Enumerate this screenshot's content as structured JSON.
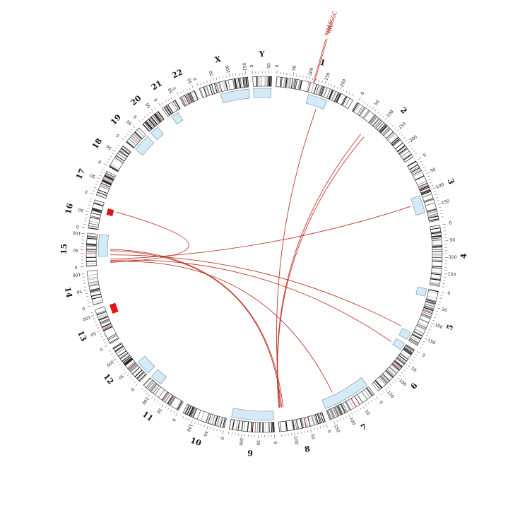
{
  "chromosomes": [
    {
      "name": "1",
      "size": 249,
      "ticks": [
        0,
        50,
        100,
        150,
        200
      ]
    },
    {
      "name": "2",
      "size": 243,
      "ticks": [
        0,
        50,
        100,
        150,
        200
      ]
    },
    {
      "name": "3",
      "size": 198,
      "ticks": [
        0,
        50,
        100,
        150
      ]
    },
    {
      "name": "4",
      "size": 191,
      "ticks": [
        0,
        50,
        100,
        150
      ]
    },
    {
      "name": "5",
      "size": 181,
      "ticks": [
        0,
        50,
        100,
        150
      ]
    },
    {
      "name": "6",
      "size": 171,
      "ticks": [
        0,
        50,
        100,
        150
      ]
    },
    {
      "name": "7",
      "size": 159,
      "ticks": [
        0,
        50,
        100,
        150
      ]
    },
    {
      "name": "8",
      "size": 146,
      "ticks": [
        0,
        50,
        100
      ]
    },
    {
      "name": "9",
      "size": 141,
      "ticks": [
        0,
        50,
        100
      ]
    },
    {
      "name": "10",
      "size": 136,
      "ticks": [
        0,
        50,
        100
      ]
    },
    {
      "name": "11",
      "size": 135,
      "ticks": [
        0,
        50,
        100
      ]
    },
    {
      "name": "12",
      "size": 134,
      "ticks": [
        0,
        50,
        100
      ]
    },
    {
      "name": "13",
      "size": 115,
      "ticks": [
        0,
        50,
        100
      ]
    },
    {
      "name": "14",
      "size": 107,
      "ticks": [
        0,
        50,
        100
      ]
    },
    {
      "name": "15",
      "size": 103,
      "ticks": [
        0,
        50,
        100
      ]
    },
    {
      "name": "16",
      "size": 90,
      "ticks": [
        0,
        50
      ]
    },
    {
      "name": "17",
      "size": 81,
      "ticks": [
        0,
        50
      ]
    },
    {
      "name": "18",
      "size": 78,
      "ticks": [
        0,
        50
      ]
    },
    {
      "name": "19",
      "size": 59,
      "ticks": [
        0,
        50
      ]
    },
    {
      "name": "20",
      "size": 63,
      "ticks": [
        0,
        50
      ]
    },
    {
      "name": "21",
      "size": 48,
      "ticks": [
        0,
        50
      ]
    },
    {
      "name": "22",
      "size": 51,
      "ticks": [
        0,
        50
      ]
    },
    {
      "name": "X",
      "size": 155,
      "ticks": [
        0,
        50,
        100,
        150
      ]
    },
    {
      "name": "Y",
      "size": 59,
      "ticks": [
        0,
        50
      ]
    }
  ],
  "cnv_segments": [
    {
      "chr": "1",
      "start": 110,
      "end": 175,
      "type": "gain"
    },
    {
      "chr": "3",
      "start": 105,
      "end": 165,
      "type": "gain"
    },
    {
      "chr": "5",
      "start": 0,
      "end": 25,
      "type": "gain"
    },
    {
      "chr": "5",
      "start": 155,
      "end": 181,
      "type": "gain"
    },
    {
      "chr": "6",
      "start": 0,
      "end": 25,
      "type": "gain"
    },
    {
      "chr": "7",
      "start": 0,
      "end": 159,
      "type": "gain"
    },
    {
      "chr": "9",
      "start": 0,
      "end": 141,
      "type": "gain"
    },
    {
      "chr": "11",
      "start": 95,
      "end": 135,
      "type": "gain"
    },
    {
      "chr": "12",
      "start": 0,
      "end": 50,
      "type": "gain"
    },
    {
      "chr": "13",
      "start": 85,
      "end": 115,
      "type": "amplification"
    },
    {
      "chr": "15",
      "start": 30,
      "end": 103,
      "type": "gain"
    },
    {
      "chr": "16",
      "start": 55,
      "end": 75,
      "type": "amplification"
    },
    {
      "chr": "19",
      "start": 0,
      "end": 59,
      "type": "gain"
    },
    {
      "chr": "20",
      "start": 0,
      "end": 30,
      "type": "gain"
    },
    {
      "chr": "21",
      "start": 10,
      "end": 35,
      "type": "gain"
    },
    {
      "chr": "X",
      "start": 60,
      "end": 155,
      "type": "gain"
    },
    {
      "chr": "Y",
      "start": 0,
      "end": 59,
      "type": "gain"
    }
  ],
  "links": [
    {
      "chr1": "1",
      "pos1": 150,
      "chr2": "8",
      "pos2": 135
    },
    {
      "chr1": "2",
      "pos1": 70,
      "chr2": "8",
      "pos2": 140
    },
    {
      "chr1": "2",
      "pos1": 85,
      "chr2": "8",
      "pos2": 138
    },
    {
      "chr1": "3",
      "pos1": 130,
      "chr2": "15",
      "pos2": 20
    },
    {
      "chr1": "16",
      "pos1": 72,
      "chr2": "15",
      "pos2": 8
    },
    {
      "chr1": "15",
      "pos1": 50,
      "chr2": "8",
      "pos2": 130
    },
    {
      "chr1": "15",
      "pos1": 55,
      "chr2": "8",
      "pos2": 125
    },
    {
      "chr1": "15",
      "pos1": 15,
      "chr2": "6",
      "pos2": 20
    },
    {
      "chr1": "15",
      "pos1": 35,
      "chr2": "5",
      "pos2": 150
    },
    {
      "chr1": "15",
      "pos1": 10,
      "chr2": "7",
      "pos2": 115
    }
  ],
  "genes": [
    {
      "label": "NRAS",
      "chr": "1",
      "pos": 115
    },
    {
      "label": "NRAS6C",
      "chr": "1",
      "pos": 118
    }
  ],
  "colors": {
    "link": "#c0392b",
    "gain": "#d4ebf7",
    "gain_border": "#6d8aa0",
    "amplification": "#ee1111",
    "band_dark": "#111111",
    "band_red": "#c0392b"
  }
}
